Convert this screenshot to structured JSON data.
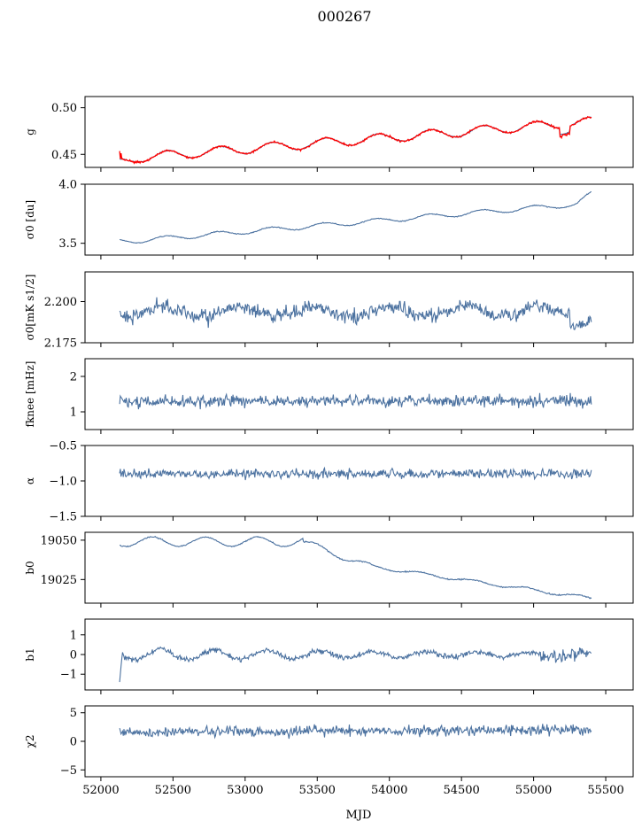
{
  "title": "000267",
  "xlabel": "MJD",
  "colors": {
    "series": "#4c72a0",
    "overlay": "#ff0000"
  },
  "chart_data": [
    {
      "type": "line",
      "ylabel": "g",
      "ylim": [
        0.436,
        0.512
      ],
      "yticks": [
        0.45,
        0.5
      ],
      "ytick_labels": [
        "0.45",
        "0.50"
      ],
      "overlay": true
    },
    {
      "type": "line",
      "ylabel": "σ0 [du]",
      "ylim": [
        3.4,
        4.0
      ],
      "yticks": [
        3.5,
        4.0
      ],
      "ytick_labels": [
        "3.5",
        "4.0"
      ]
    },
    {
      "type": "line",
      "ylabel": "σ0[mK s1/2]",
      "ylim": [
        2.175,
        2.218
      ],
      "yticks": [
        2.175,
        2.2
      ],
      "ytick_labels": [
        "2.175",
        "2.200"
      ]
    },
    {
      "type": "line",
      "ylabel": "fknee [mHz]",
      "ylim": [
        0.5,
        2.5
      ],
      "yticks": [
        1,
        2
      ],
      "ytick_labels": [
        "1",
        "2"
      ]
    },
    {
      "type": "line",
      "ylabel": "α",
      "ylim": [
        -1.5,
        -0.5
      ],
      "yticks": [
        -1.5,
        -1.0,
        -0.5
      ],
      "ytick_labels": [
        "−1.5",
        "−1.0",
        "−0.5"
      ]
    },
    {
      "type": "line",
      "ylabel": "b0",
      "ylim": [
        19010,
        19055
      ],
      "yticks": [
        19025,
        19050
      ],
      "ytick_labels": [
        "19025",
        "19050"
      ]
    },
    {
      "type": "line",
      "ylabel": "b1",
      "ylim": [
        -1.8,
        1.8
      ],
      "yticks": [
        -1,
        0,
        1
      ],
      "ytick_labels": [
        "−1",
        "0",
        "1"
      ]
    },
    {
      "type": "line",
      "ylabel": "χ2",
      "ylim": [
        -6.2,
        6.2
      ],
      "yticks": [
        -5,
        0,
        5
      ],
      "ytick_labels": [
        "−5",
        "0",
        "5"
      ]
    }
  ],
  "xaxis": {
    "xlim": [
      51890,
      55690
    ],
    "ticks": [
      52000,
      52500,
      53000,
      53500,
      54000,
      54500,
      55000,
      55500
    ],
    "tick_labels": [
      "52000",
      "52500",
      "53000",
      "53500",
      "54000",
      "54500",
      "55000",
      "55500"
    ],
    "data_start": 52130,
    "data_end": 55400
  }
}
